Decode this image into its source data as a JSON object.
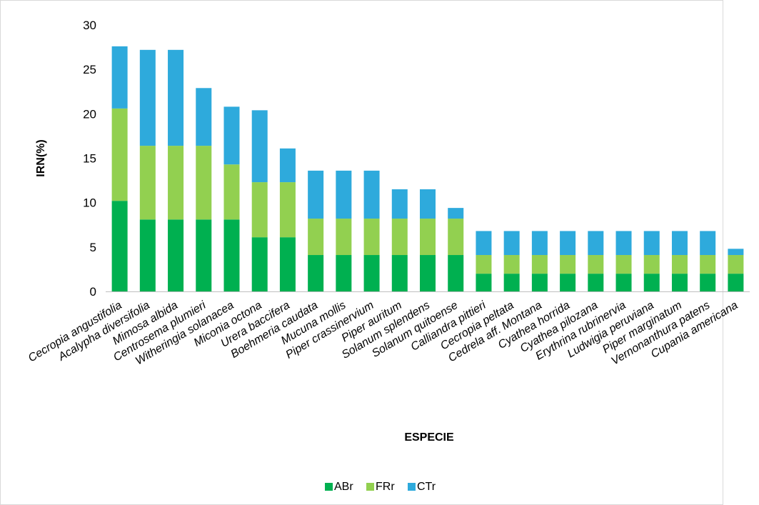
{
  "chart_data": {
    "type": "bar",
    "stacked": true,
    "title": "",
    "xlabel": "ESPECIE",
    "ylabel": "IRN(%)",
    "ylim": [
      0,
      30
    ],
    "yticks": [
      "0",
      "5",
      "10",
      "15",
      "20",
      "25",
      "30"
    ],
    "grid": false,
    "legend_position": "bottom",
    "categories": [
      "Cecropia angustifolia",
      "Acalypha diversifolia",
      "Mimosa albida",
      "Centrosema plumieri",
      "Witheringia solanacea",
      "Miconia octona",
      "Urera baccifera",
      "Boehmeria caudata",
      "Mucuna mollis",
      "Piper crassinervium",
      "Piper auritum",
      "Solanum splendens",
      "Solanum quitoense",
      "Calliandra pittieri",
      "Cecropia peltata",
      "Cedrela aff. Montana",
      "Cyathea horrida",
      "Cyathea pilozana",
      "Erythrina rubrinervia",
      "Ludwigia peruviana",
      "Piper marginatum",
      "Vernonanthura patens",
      "Cupania americana"
    ],
    "series": [
      {
        "name": "ABr",
        "color": "#00b050",
        "values": [
          10.2,
          8.1,
          8.1,
          8.1,
          8.1,
          6.1,
          6.1,
          4.1,
          4.1,
          4.1,
          4.1,
          4.1,
          4.1,
          2.0,
          2.0,
          2.0,
          2.0,
          2.0,
          2.0,
          2.0,
          2.0,
          2.0,
          2.0
        ]
      },
      {
        "name": "FRr",
        "color": "#92d050",
        "values": [
          10.4,
          8.3,
          8.3,
          8.3,
          6.2,
          6.2,
          6.2,
          4.1,
          4.1,
          4.1,
          4.1,
          4.1,
          4.1,
          2.1,
          2.1,
          2.1,
          2.1,
          2.1,
          2.1,
          2.1,
          2.1,
          2.1,
          2.1
        ]
      },
      {
        "name": "CTr",
        "color": "#2eaadc",
        "values": [
          7.0,
          10.8,
          10.8,
          6.5,
          6.5,
          8.1,
          3.8,
          5.4,
          5.4,
          5.4,
          3.3,
          3.3,
          1.2,
          2.7,
          2.7,
          2.7,
          2.7,
          2.7,
          2.7,
          2.7,
          2.7,
          2.7,
          0.7
        ]
      }
    ]
  }
}
